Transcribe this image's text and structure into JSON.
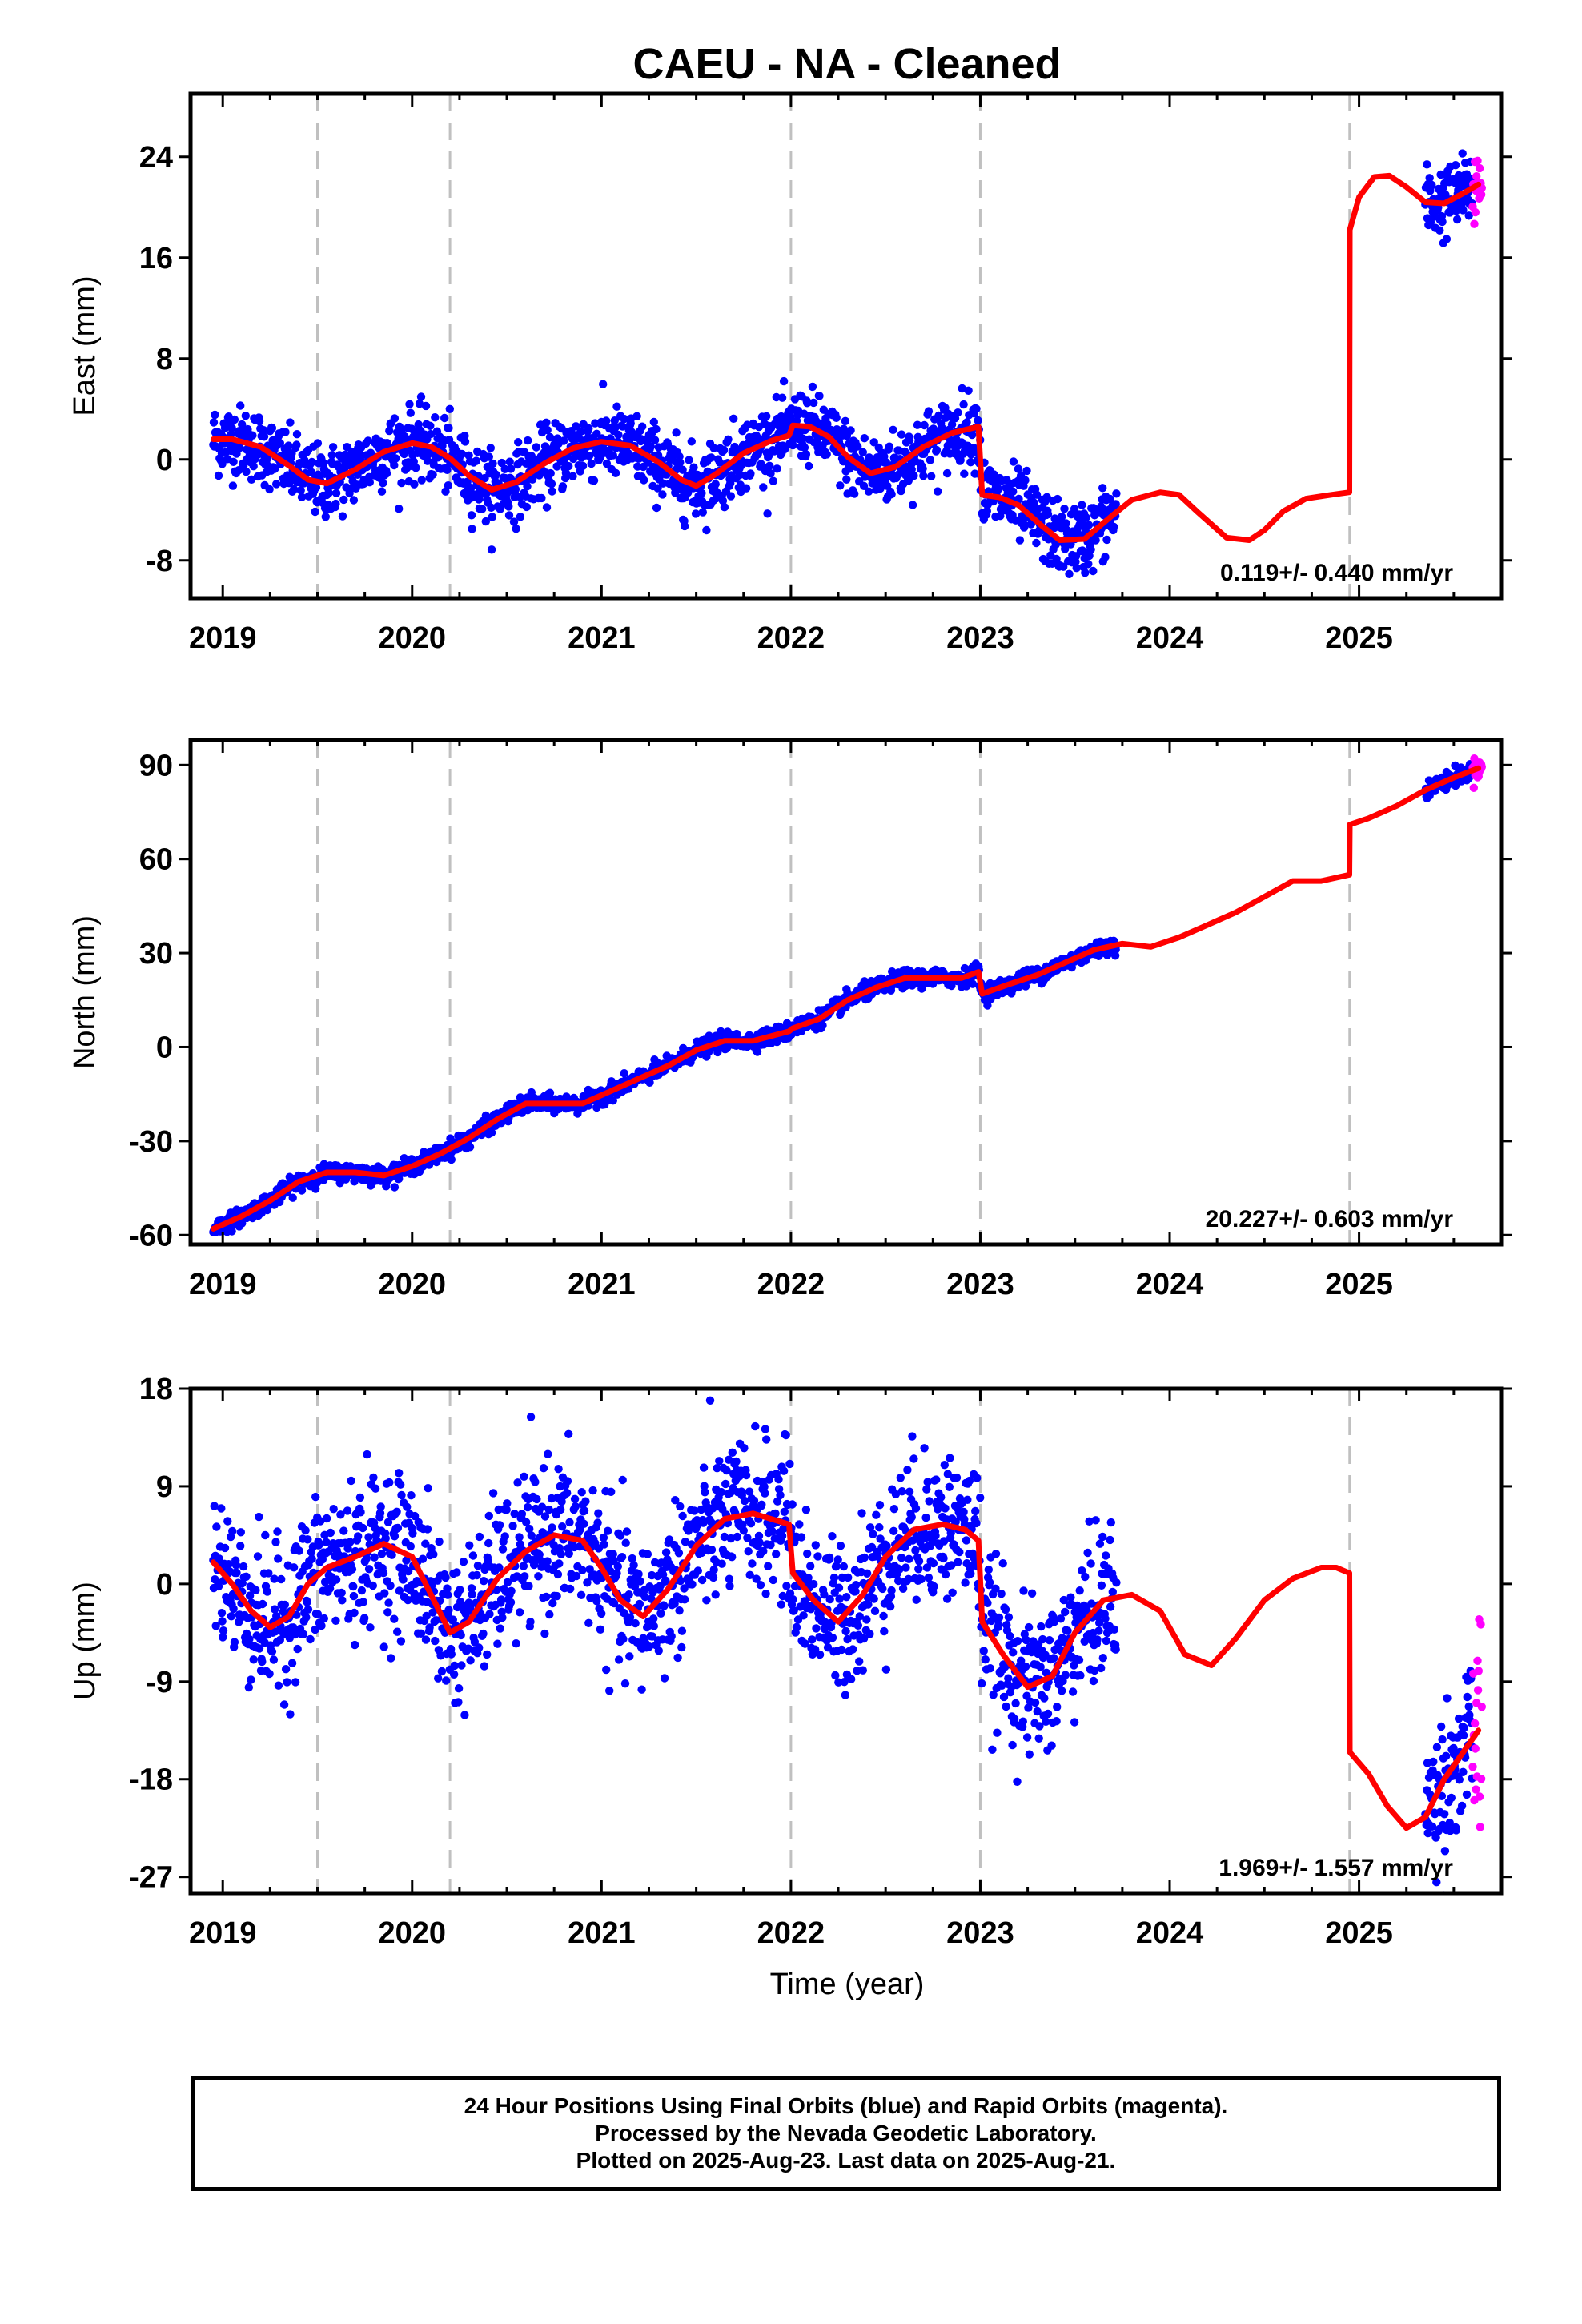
{
  "title": "CAEU  - NA - Cleaned",
  "xlabel": "Time (year)",
  "footer": {
    "line1": "24 Hour Positions Using Final Orbits (blue) and Rapid Orbits (magenta).",
    "line2": "Processed by the Nevada Geodetic Laboratory.",
    "line3": "Plotted on 2025-Aug-23. Last data on 2025-Aug-21."
  },
  "colors": {
    "final": "#0000ff",
    "rapid": "#ff00ff",
    "model": "#ff0000",
    "break_lines": "#c0c0c0"
  },
  "chart_data": [
    {
      "type": "scatter",
      "component": "east",
      "ylabel": "East (mm)",
      "ylim": [
        -11,
        29
      ],
      "yticks": [
        -8,
        0,
        8,
        16,
        24
      ],
      "xlim": [
        2018.83,
        2025.75
      ],
      "xticks": [
        2019,
        2020,
        2021,
        2022,
        2023,
        2024,
        2025
      ],
      "rate_text": "0.119+/- 0.440 mm/yr",
      "break_epochs": [
        2019.5,
        2020.2,
        2022.0,
        2023.0,
        2024.95
      ],
      "final_span": [
        [
          2018.95,
          2023.72
        ],
        [
          2025.35,
          2025.6
        ]
      ],
      "rapid_span": [
        2025.6,
        2025.65
      ],
      "model": {
        "x": [
          2018.95,
          2019.05,
          2019.2,
          2019.35,
          2019.45,
          2019.55,
          2019.7,
          2019.85,
          2020.0,
          2020.1,
          2020.2,
          2020.3,
          2020.42,
          2020.55,
          2020.7,
          2020.85,
          2021.0,
          2021.15,
          2021.3,
          2021.42,
          2021.5,
          2021.6,
          2021.75,
          2021.9,
          2021.99,
          2022.01,
          2022.1,
          2022.2,
          2022.3,
          2022.42,
          2022.55,
          2022.7,
          2022.85,
          2022.99,
          2023.01,
          2023.1,
          2023.2,
          2023.32,
          2023.42,
          2023.55,
          2023.7,
          2023.8,
          2023.95,
          2024.05,
          2024.15,
          2024.3,
          2024.42,
          2024.5,
          2024.6,
          2024.72,
          2024.85,
          2024.949,
          2024.951,
          2025.0,
          2025.08,
          2025.16,
          2025.25,
          2025.35,
          2025.45,
          2025.55,
          2025.63
        ],
        "y": [
          1.6,
          1.6,
          1.0,
          -0.5,
          -1.6,
          -1.9,
          -0.8,
          0.6,
          1.3,
          1.0,
          0.1,
          -1.3,
          -2.4,
          -1.8,
          -0.3,
          0.9,
          1.4,
          1.1,
          -0.2,
          -1.6,
          -2.1,
          -1.2,
          0.5,
          1.5,
          1.9,
          2.7,
          2.6,
          1.8,
          0.2,
          -1.1,
          -0.6,
          1.0,
          2.1,
          2.6,
          -2.8,
          -3.0,
          -3.6,
          -5.2,
          -6.4,
          -6.3,
          -4.4,
          -3.2,
          -2.6,
          -2.8,
          -4.2,
          -6.2,
          -6.4,
          -5.6,
          -4.1,
          -3.1,
          -2.8,
          -2.6,
          18.2,
          20.8,
          22.4,
          22.5,
          21.6,
          20.4,
          20.3,
          21.1,
          21.8
        ]
      }
    },
    {
      "type": "scatter",
      "component": "north",
      "ylabel": "North (mm)",
      "ylim": [
        -63,
        98
      ],
      "yticks": [
        -60,
        -30,
        0,
        30,
        60,
        90
      ],
      "xlim": [
        2018.83,
        2025.75
      ],
      "xticks": [
        2019,
        2020,
        2021,
        2022,
        2023,
        2024,
        2025
      ],
      "rate_text": "20.227+/- 0.603 mm/yr",
      "break_epochs": [
        2019.5,
        2020.2,
        2022.0,
        2023.0,
        2024.95
      ],
      "final_span": [
        [
          2018.95,
          2023.72
        ],
        [
          2025.35,
          2025.6
        ]
      ],
      "rapid_span": [
        2025.6,
        2025.65
      ],
      "model": {
        "x": [
          2018.95,
          2019.1,
          2019.25,
          2019.4,
          2019.55,
          2019.7,
          2019.85,
          2020.0,
          2020.15,
          2020.3,
          2020.45,
          2020.6,
          2020.75,
          2020.9,
          2021.05,
          2021.2,
          2021.35,
          2021.5,
          2021.65,
          2021.8,
          2021.99,
          2022.01,
          2022.15,
          2022.3,
          2022.45,
          2022.6,
          2022.75,
          2022.9,
          2022.99,
          2023.01,
          2023.15,
          2023.3,
          2023.45,
          2023.6,
          2023.75,
          2023.9,
          2024.05,
          2024.2,
          2024.35,
          2024.5,
          2024.65,
          2024.8,
          2024.949,
          2024.951,
          2025.05,
          2025.2,
          2025.35,
          2025.5,
          2025.63
        ],
        "y": [
          -58,
          -54,
          -49,
          -43,
          -40,
          -40,
          -41,
          -38,
          -34,
          -29,
          -23,
          -18,
          -18,
          -18,
          -14,
          -10,
          -6,
          -1,
          2,
          2,
          5,
          6,
          9,
          15,
          19,
          22,
          22,
          22,
          24,
          17,
          20,
          23,
          27,
          31,
          33,
          32,
          35,
          39,
          43,
          48,
          53,
          53,
          55,
          71,
          73,
          77,
          82,
          86,
          89
        ]
      }
    },
    {
      "type": "scatter",
      "component": "up",
      "ylabel": "Up (mm)",
      "ylim": [
        -28.5,
        18
      ],
      "yticks": [
        -27,
        -18,
        -9,
        0,
        9,
        18
      ],
      "xlim": [
        2018.83,
        2025.75
      ],
      "xticks": [
        2019,
        2020,
        2021,
        2022,
        2023,
        2024,
        2025
      ],
      "rate_text": "1.969+/- 1.557 mm/yr",
      "break_epochs": [
        2019.5,
        2020.2,
        2022.0,
        2023.0,
        2024.95
      ],
      "final_span": [
        [
          2018.95,
          2023.72
        ],
        [
          2025.35,
          2025.6
        ]
      ],
      "rapid_span": [
        2025.6,
        2025.65
      ],
      "model": {
        "x": [
          2018.95,
          2019.05,
          2019.15,
          2019.25,
          2019.35,
          2019.45,
          2019.55,
          2019.7,
          2019.85,
          2020.0,
          2020.1,
          2020.2,
          2020.3,
          2020.45,
          2020.6,
          2020.75,
          2020.9,
          2021.0,
          2021.1,
          2021.22,
          2021.35,
          2021.5,
          2021.65,
          2021.8,
          2021.99,
          2022.01,
          2022.12,
          2022.25,
          2022.38,
          2022.5,
          2022.65,
          2022.8,
          2022.92,
          2022.99,
          2023.01,
          2023.12,
          2023.25,
          2023.38,
          2023.5,
          2023.65,
          2023.8,
          2023.95,
          2024.08,
          2024.22,
          2024.35,
          2024.5,
          2024.65,
          2024.8,
          2024.88,
          2024.949,
          2024.951,
          2025.05,
          2025.15,
          2025.25,
          2025.35,
          2025.45,
          2025.55,
          2025.63
        ],
        "y": [
          2,
          0,
          -2.5,
          -4,
          -3,
          0,
          1.5,
          2.5,
          3.7,
          2.5,
          -1,
          -4.5,
          -3.5,
          0.5,
          3,
          4.5,
          4,
          1.5,
          -1.5,
          -3,
          -0.5,
          3.5,
          6,
          6.5,
          5.5,
          1,
          -1.5,
          -3.5,
          -1,
          2.5,
          5,
          5.5,
          5,
          4,
          -3.5,
          -6.5,
          -9.5,
          -8.5,
          -4.5,
          -1.5,
          -1,
          -2.5,
          -6.5,
          -7.5,
          -5,
          -1.5,
          0.5,
          1.5,
          1.5,
          1,
          -15.5,
          -17.5,
          -20.5,
          -22.5,
          -21.5,
          -18,
          -15.5,
          -13.5
        ]
      }
    }
  ]
}
